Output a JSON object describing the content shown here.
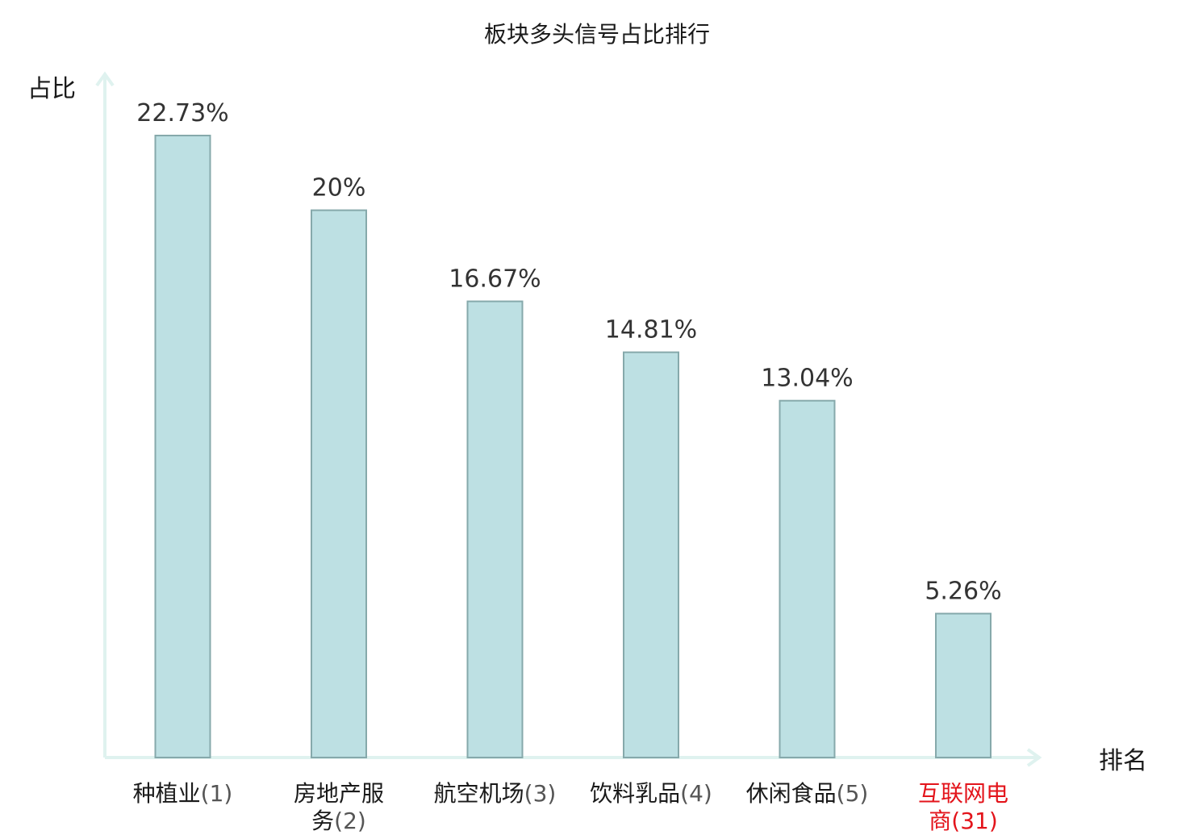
{
  "chart_data": {
    "type": "bar",
    "title": "板块多头信号占比排行",
    "ylabel": "占比",
    "xlabel": "排名",
    "ylim": [
      0,
      24.5
    ],
    "categories": [
      {
        "name": [
          "种植业"
        ],
        "rank": "(1)",
        "highlight": false
      },
      {
        "name": [
          "房地产服",
          "务"
        ],
        "rank": "(2)",
        "highlight": false
      },
      {
        "name": [
          "航空机场"
        ],
        "rank": "(3)",
        "highlight": false
      },
      {
        "name": [
          "饮料乳品"
        ],
        "rank": "(4)",
        "highlight": false
      },
      {
        "name": [
          "休闲食品"
        ],
        "rank": "(5)",
        "highlight": false
      },
      {
        "name": [
          "互联网电",
          "商"
        ],
        "rank": "(31)",
        "highlight": true
      }
    ],
    "values": [
      22.73,
      20,
      16.67,
      14.81,
      13.04,
      5.26
    ],
    "value_labels": [
      "22.73%",
      "20%",
      "16.67%",
      "14.81%",
      "13.04%",
      "5.26%"
    ],
    "grid": false,
    "legend": "none"
  },
  "colors": {
    "bar_fill": "#bde0e3",
    "bar_stroke": "#86a9ab",
    "axis": "#dff2ef",
    "text": "#1a1a1a",
    "rank_text": "#555555",
    "highlight": "#e3141b"
  }
}
